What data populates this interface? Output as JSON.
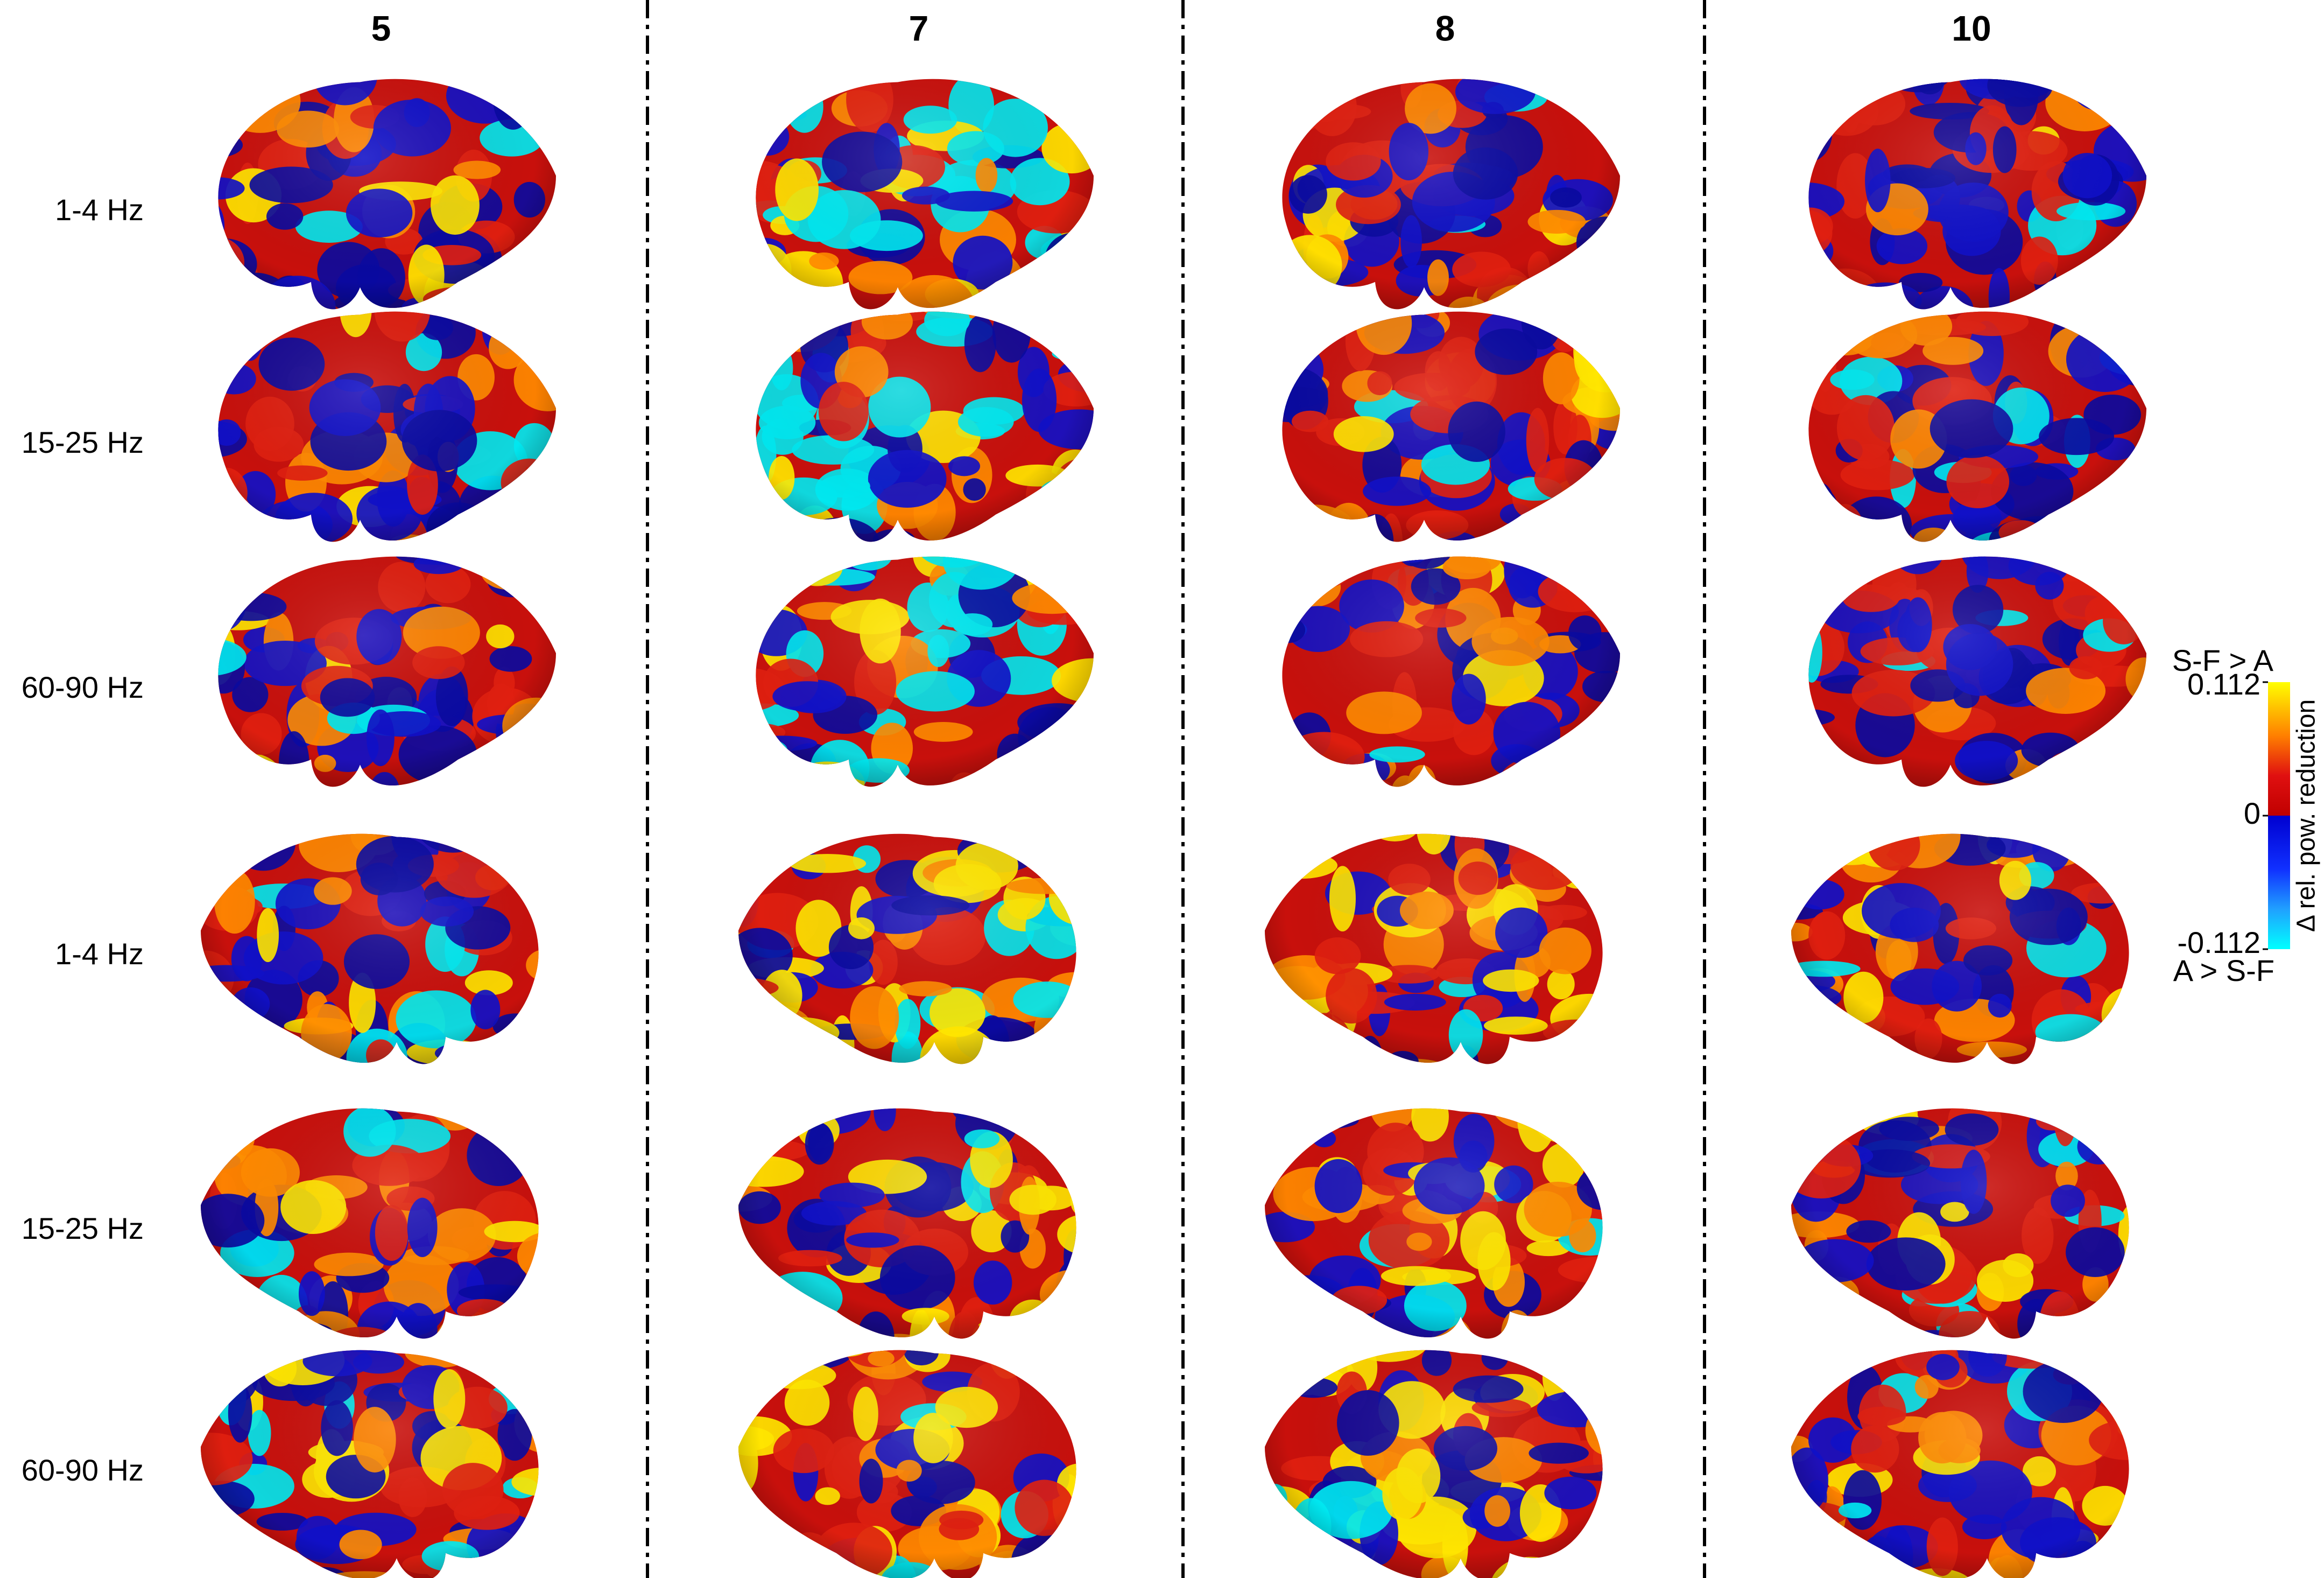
{
  "columns": [
    "5",
    "7",
    "8",
    "10"
  ],
  "top_rows": [
    "1-4 Hz",
    "15-25 Hz",
    "60-90 Hz"
  ],
  "bottom_rows": [
    "1-4 Hz",
    "15-25 Hz",
    "60-90 Hz"
  ],
  "colorbar": {
    "top_label": "S-F > A",
    "bottom_label": "A > S-F",
    "axis_label": "Δ rel. pow. reduction",
    "lim": [
      -0.112,
      0.112
    ],
    "ticks": [
      0.112,
      0,
      -0.112
    ]
  }
}
